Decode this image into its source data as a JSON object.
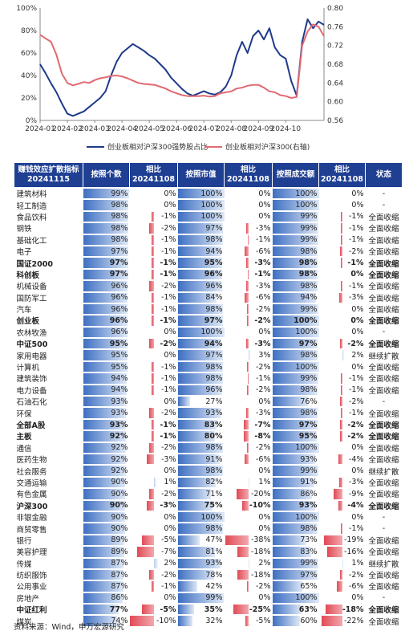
{
  "chart_data": [
    {
      "type": "line",
      "x_ticks": [
        "2024-01",
        "2024-02",
        "2024-03",
        "2024-04",
        "2024-05",
        "2024-06",
        "2024-07",
        "2024-08",
        "2024-09",
        "2024-10"
      ],
      "y_left_ticks": [
        "0%",
        "20%",
        "40%",
        "60%",
        "80%",
        "100%"
      ],
      "y_right_ticks": [
        "0.56",
        "0.60",
        "0.64",
        "0.68",
        "0.72",
        "0.76",
        "0.80"
      ],
      "ylim_left": [
        0,
        100
      ],
      "ylim_right": [
        0.56,
        0.8
      ],
      "legend_position": "bottom",
      "series": [
        {
          "name": "创业板相对沪深300强势股占比",
          "axis": "left",
          "color": "#1f3a8a",
          "x": [
            0,
            0.2,
            0.4,
            0.6,
            0.8,
            1.0,
            1.2,
            1.4,
            1.6,
            1.8,
            2.0,
            2.2,
            2.4,
            2.6,
            2.8,
            3.0,
            3.2,
            3.4,
            3.6,
            3.8,
            4.0,
            4.2,
            4.4,
            4.6,
            4.8,
            5.0,
            5.2,
            5.4,
            5.6,
            5.8,
            6.0,
            6.2,
            6.4,
            6.6,
            6.8,
            7.0,
            7.2,
            7.4,
            7.6,
            7.8,
            8.0,
            8.2,
            8.4,
            8.6,
            8.8,
            9.0,
            9.2,
            9.4,
            9.6,
            9.8,
            10.0,
            10.2,
            10.4
          ],
          "values": [
            50,
            42,
            33,
            25,
            15,
            6,
            4,
            6,
            8,
            12,
            16,
            20,
            26,
            40,
            52,
            60,
            64,
            68,
            65,
            62,
            58,
            55,
            50,
            45,
            38,
            33,
            28,
            24,
            22,
            24,
            26,
            24,
            23,
            25,
            30,
            40,
            58,
            70,
            60,
            75,
            80,
            72,
            82,
            65,
            58,
            55,
            35,
            22,
            70,
            90,
            82,
            88,
            85
          ]
        },
        {
          "name": "创业板相对沪深300(右轴)",
          "axis": "right",
          "color": "#e06a72",
          "x": [
            0,
            0.2,
            0.4,
            0.6,
            0.8,
            1.0,
            1.2,
            1.4,
            1.6,
            1.8,
            2.0,
            2.2,
            2.4,
            2.6,
            2.8,
            3.0,
            3.2,
            3.4,
            3.6,
            3.8,
            4.0,
            4.2,
            4.4,
            4.6,
            4.8,
            5.0,
            5.2,
            5.4,
            5.6,
            5.8,
            6.0,
            6.2,
            6.4,
            6.6,
            6.8,
            7.0,
            7.2,
            7.4,
            7.6,
            7.8,
            8.0,
            8.2,
            8.4,
            8.6,
            8.8,
            9.0,
            9.2,
            9.4,
            9.6,
            9.8,
            10.0,
            10.2,
            10.4
          ],
          "values": [
            0.743,
            0.735,
            0.728,
            0.7,
            0.66,
            0.64,
            0.635,
            0.638,
            0.642,
            0.64,
            0.646,
            0.65,
            0.652,
            0.655,
            0.656,
            0.654,
            0.65,
            0.645,
            0.64,
            0.638,
            0.637,
            0.636,
            0.632,
            0.628,
            0.622,
            0.618,
            0.614,
            0.612,
            0.612,
            0.612,
            0.613,
            0.611,
            0.612,
            0.618,
            0.62,
            0.622,
            0.628,
            0.63,
            0.634,
            0.636,
            0.636,
            0.63,
            0.622,
            0.62,
            0.614,
            0.612,
            0.608,
            0.61,
            0.72,
            0.75,
            0.765,
            0.76,
            0.74
          ]
        }
      ]
    },
    {
      "type": "table",
      "columns": [
        "赚钱效应扩散指标\n20241115",
        "按照个数",
        "相比\n20241108",
        "按照市值",
        "相比\n20241108",
        "按照成交额",
        "相比\n20241108",
        "状态"
      ],
      "rows": [
        [
          "建筑材料",
          "99%",
          "0%",
          "100%",
          "0%",
          "100%",
          "0%",
          "-"
        ],
        [
          "轻工制造",
          "98%",
          "0%",
          "100%",
          "0%",
          "100%",
          "0%",
          "-"
        ],
        [
          "食品饮料",
          "98%",
          "-1%",
          "100%",
          "0%",
          "99%",
          "-1%",
          "全面收缩"
        ],
        [
          "钢铁",
          "98%",
          "-2%",
          "97%",
          "-3%",
          "99%",
          "-1%",
          "全面收缩"
        ],
        [
          "基础化工",
          "98%",
          "-1%",
          "98%",
          "-1%",
          "99%",
          "-1%",
          "全面收缩"
        ],
        [
          "电子",
          "97%",
          "-1%",
          "94%",
          "-6%",
          "98%",
          "-2%",
          "全面收缩"
        ],
        [
          "国证2000",
          "97%",
          "-1%",
          "95%",
          "-3%",
          "98%",
          "-1%",
          "全面收缩"
        ],
        [
          "科创板",
          "97%",
          "-1%",
          "96%",
          "-1%",
          "98%",
          "0%",
          "全面收缩"
        ],
        [
          "机械设备",
          "96%",
          "-2%",
          "96%",
          "-3%",
          "98%",
          "-1%",
          "全面收缩"
        ],
        [
          "国防军工",
          "96%",
          "-1%",
          "84%",
          "-6%",
          "94%",
          "-3%",
          "全面收缩"
        ],
        [
          "汽车",
          "96%",
          "-1%",
          "98%",
          "-2%",
          "99%",
          "0%",
          "全面收缩"
        ],
        [
          "创业板",
          "96%",
          "-1%",
          "97%",
          "-2%",
          "100%",
          "0%",
          "全面收缩"
        ],
        [
          "农林牧渔",
          "96%",
          "0%",
          "100%",
          "0%",
          "100%",
          "0%",
          "-"
        ],
        [
          "中证500",
          "95%",
          "-2%",
          "94%",
          "-3%",
          "97%",
          "-2%",
          "全面收缩"
        ],
        [
          "家用电器",
          "95%",
          "0%",
          "97%",
          "3%",
          "98%",
          "2%",
          "继续扩散"
        ],
        [
          "计算机",
          "95%",
          "-1%",
          "98%",
          "-2%",
          "100%",
          "0%",
          "全面收缩"
        ],
        [
          "建筑装饰",
          "94%",
          "-1%",
          "98%",
          "-1%",
          "99%",
          "-1%",
          "全面收缩"
        ],
        [
          "电力设备",
          "94%",
          "-1%",
          "96%",
          "-2%",
          "98%",
          "-1%",
          "全面收缩"
        ],
        [
          "石油石化",
          "93%",
          "0%",
          "27%",
          "0%",
          "76%",
          "-2%",
          "-"
        ],
        [
          "环保",
          "93%",
          "-2%",
          "93%",
          "-3%",
          "98%",
          "-1%",
          "全面收缩"
        ],
        [
          "全部A股",
          "93%",
          "-1%",
          "83%",
          "-7%",
          "97%",
          "-2%",
          "全面收缩"
        ],
        [
          "主板",
          "92%",
          "-1%",
          "80%",
          "-8%",
          "95%",
          "-2%",
          "全面收缩"
        ],
        [
          "通信",
          "92%",
          "-2%",
          "98%",
          "-2%",
          "100%",
          "0%",
          "全面收缩"
        ],
        [
          "医药生物",
          "92%",
          "-3%",
          "91%",
          "-6%",
          "93%",
          "-4%",
          "全面收缩"
        ],
        [
          "社会服务",
          "92%",
          "0%",
          "98%",
          "0%",
          "99%",
          "0%",
          "继续扩散"
        ],
        [
          "交通运输",
          "90%",
          "1%",
          "82%",
          "1%",
          "91%",
          "-3%",
          "全面收缩"
        ],
        [
          "有色金属",
          "90%",
          "-2%",
          "71%",
          "-20%",
          "86%",
          "-9%",
          "全面收缩"
        ],
        [
          "沪深300",
          "90%",
          "-3%",
          "75%",
          "-10%",
          "93%",
          "-4%",
          "全面收缩"
        ],
        [
          "非银金融",
          "90%",
          "0%",
          "100%",
          "0%",
          "100%",
          "0%",
          "-"
        ],
        [
          "商贸零售",
          "90%",
          "0%",
          "98%",
          "0%",
          "98%",
          "-1%",
          "-"
        ],
        [
          "银行",
          "89%",
          "-5%",
          "47%",
          "-38%",
          "73%",
          "-19%",
          "全面收缩"
        ],
        [
          "美容护理",
          "89%",
          "-7%",
          "81%",
          "-18%",
          "83%",
          "-16%",
          "全面收缩"
        ],
        [
          "传媒",
          "87%",
          "2%",
          "93%",
          "2%",
          "99%",
          "1%",
          "继续扩散"
        ],
        [
          "纺织服饰",
          "87%",
          "-2%",
          "78%",
          "-18%",
          "97%",
          "-2%",
          "全面收缩"
        ],
        [
          "公用事业",
          "87%",
          "-1%",
          "42%",
          "-2%",
          "65%",
          "-6%",
          "全面收缩"
        ],
        [
          "房地产",
          "86%",
          "0%",
          "99%",
          "0%",
          "100%",
          "0%",
          "-"
        ],
        [
          "中证红利",
          "77%",
          "-5%",
          "35%",
          "-25%",
          "63%",
          "-18%",
          "全面收缩"
        ],
        [
          "煤炭",
          "74%",
          "-10%",
          "32%",
          "-5%",
          "60%",
          "-22%",
          "全面收缩"
        ]
      ],
      "bold_rows": [
        "国证2000",
        "科创板",
        "创业板",
        "中证500",
        "全部A股",
        "主板",
        "沪深300",
        "中证红利"
      ]
    }
  ],
  "source": "资料来源：Wind，申万宏源研究"
}
